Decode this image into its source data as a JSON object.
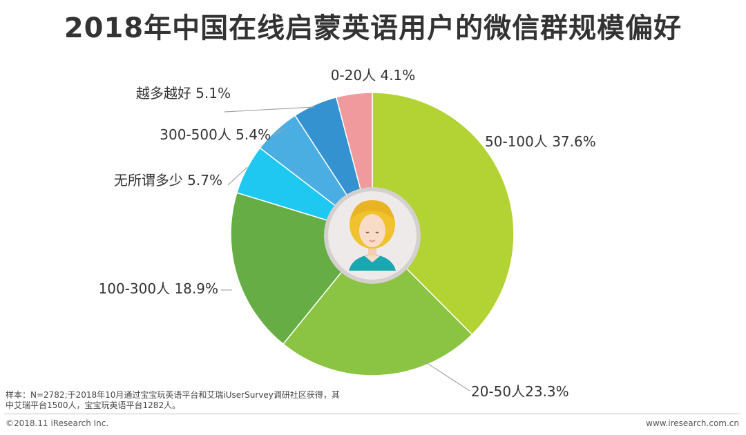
{
  "title": "2018年中国在线启蒙英语用户的微信群规模偏好",
  "chart_data": {
    "type": "pie",
    "title": "2018年中国在线启蒙英语用户的微信群规模偏好",
    "slices": [
      {
        "label": "50-100人 37.6%",
        "name": "50-100人",
        "value": 37.6,
        "color": "#b3d334"
      },
      {
        "label": "20-50人23.3%",
        "name": "20-50人",
        "value": 23.3,
        "color": "#8bc342"
      },
      {
        "label": "100-300人 18.9%",
        "name": "100-300人",
        "value": 18.9,
        "color": "#66ad45"
      },
      {
        "label": "无所谓多少 5.7%",
        "name": "无所谓多少",
        "value": 5.7,
        "color": "#1ec8f0"
      },
      {
        "label": "300-500人 5.4%",
        "name": "300-500人",
        "value": 5.4,
        "color": "#4aaee2"
      },
      {
        "label": "越多越好 5.1%",
        "name": "越多越好",
        "value": 5.1,
        "color": "#3592d0"
      },
      {
        "label": "0-20人 4.1%",
        "name": "0-20人",
        "value": 4.1,
        "color": "#f09a9d"
      }
    ]
  },
  "footer": {
    "note_line1": "样本：N=2782;于2018年10月通过宝宝玩英语平台和艾瑞iUserSurvey调研社区获得，其",
    "note_line2": "中艾瑞平台1500人，宝宝玩英语平台1282人。",
    "copyright": "©2018.11 iResearch Inc.",
    "website": "www.iresearch.com.cn"
  },
  "center_icon": "user-avatar-icon"
}
